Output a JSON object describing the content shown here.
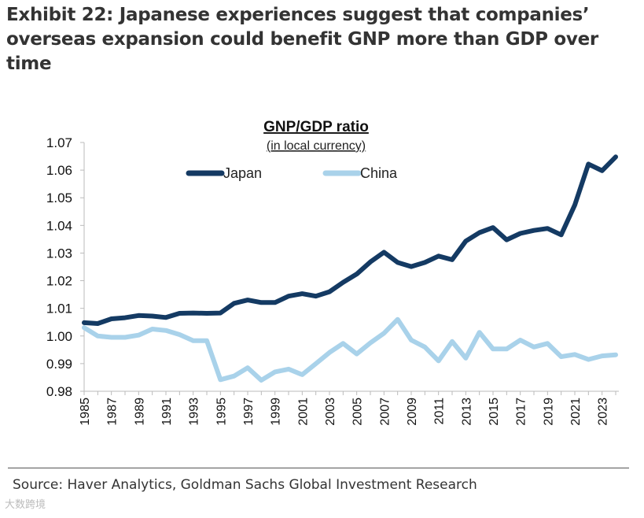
{
  "title": "Exhibit 22: Japanese experiences suggest that companies’ overseas expansion could benefit GNP more than GDP over time",
  "source": "Source: Haver Analytics, Goldman Sachs Global Investment Research",
  "watermark": "大数跨境",
  "chart_data": {
    "type": "line",
    "title": "GNP/GDP ratio",
    "subtitle": "(in local currency)",
    "xlabel": "",
    "ylabel": "",
    "x": [
      1985,
      1986,
      1987,
      1988,
      1989,
      1990,
      1991,
      1992,
      1993,
      1994,
      1995,
      1996,
      1997,
      1998,
      1999,
      2000,
      2001,
      2002,
      2003,
      2004,
      2005,
      2006,
      2007,
      2008,
      2009,
      2010,
      2011,
      2012,
      2013,
      2014,
      2015,
      2016,
      2017,
      2018,
      2019,
      2020,
      2021,
      2022,
      2023,
      2024
    ],
    "xticks": [
      "1985",
      "1987",
      "1989",
      "1991",
      "1993",
      "1995",
      "1997",
      "1999",
      "2001",
      "2003",
      "2005",
      "2007",
      "2009",
      "2011",
      "2013",
      "2015",
      "2017",
      "2019",
      "2021",
      "2023"
    ],
    "yticks": [
      "0.98",
      "0.99",
      "1.00",
      "1.01",
      "1.02",
      "1.03",
      "1.04",
      "1.05",
      "1.06",
      "1.07"
    ],
    "ylim": [
      0.98,
      1.07
    ],
    "grid": false,
    "legend": "top-center",
    "series": [
      {
        "name": "Japan",
        "color": "#143a63",
        "values": [
          1.0048,
          1.0045,
          1.0062,
          1.0066,
          1.0074,
          1.0072,
          1.0067,
          1.0082,
          1.0083,
          1.0082,
          1.0083,
          1.0118,
          1.013,
          1.0121,
          1.0121,
          1.0144,
          1.0153,
          1.0144,
          1.016,
          1.0194,
          1.0224,
          1.0268,
          1.0303,
          1.0266,
          1.0251,
          1.0266,
          1.0289,
          1.0276,
          1.0343,
          1.0374,
          1.0392,
          1.0348,
          1.0371,
          1.0382,
          1.0389,
          1.0366,
          1.0474,
          1.0622,
          1.0598,
          1.0648
        ]
      },
      {
        "name": "China",
        "color": "#a9d2ea",
        "values": [
          1.003,
          1.0,
          0.9995,
          0.9995,
          1.0003,
          1.0025,
          1.002,
          1.0005,
          0.9983,
          0.9983,
          0.9842,
          0.9855,
          0.9885,
          0.984,
          0.987,
          0.988,
          0.986,
          0.99,
          0.994,
          0.9973,
          0.9935,
          0.9975,
          1.001,
          1.006,
          0.9985,
          0.996,
          0.991,
          0.998,
          0.992,
          1.0013,
          0.9953,
          0.9953,
          0.9985,
          0.996,
          0.9973,
          0.9925,
          0.9933,
          0.9915,
          0.9928,
          0.9932
        ]
      }
    ]
  }
}
